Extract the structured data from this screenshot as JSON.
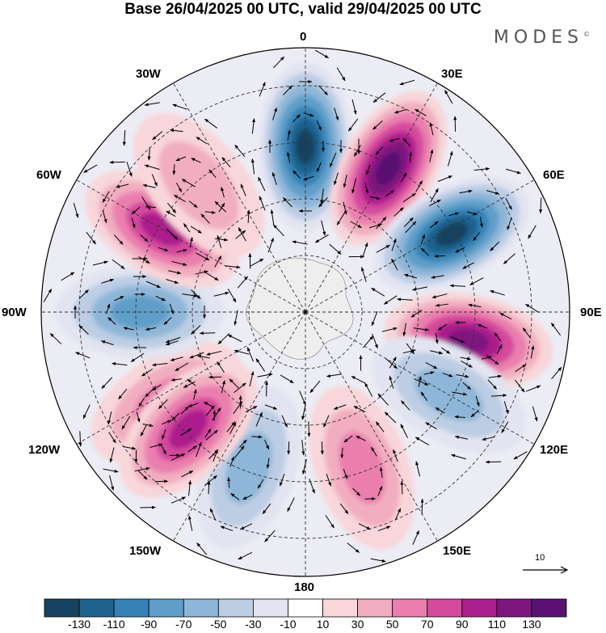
{
  "title": "Base 26/04/2025 00 UTC, valid 29/04/2025 00 UTC",
  "brand": {
    "name": "MODES",
    "mark": "©"
  },
  "map": {
    "projection": "polar stereographic (south pole)",
    "longitude_labels": [
      {
        "key": "lon_0",
        "text": "0"
      },
      {
        "key": "lon_30E",
        "text": "30E"
      },
      {
        "key": "lon_60E",
        "text": "60E"
      },
      {
        "key": "lon_90E",
        "text": "90E"
      },
      {
        "key": "lon_120E",
        "text": "120E"
      },
      {
        "key": "lon_150E",
        "text": "150E"
      },
      {
        "key": "lon_180",
        "text": "180"
      },
      {
        "key": "lon_150W",
        "text": "150W"
      },
      {
        "key": "lon_120W",
        "text": "120W"
      },
      {
        "key": "lon_90W",
        "text": "90W"
      },
      {
        "key": "lon_60W",
        "text": "60W"
      },
      {
        "key": "lon_30W",
        "text": "30W"
      }
    ],
    "anomaly_centers": [
      {
        "lon_deg": 0,
        "sign": "negative",
        "peak": -130
      },
      {
        "lon_deg": 30,
        "sign": "positive",
        "peak": 130
      },
      {
        "lon_deg": 62,
        "sign": "negative",
        "peak": -130
      },
      {
        "lon_deg": 100,
        "sign": "positive",
        "peak": 110
      },
      {
        "lon_deg": 120,
        "sign": "negative",
        "peak": -50
      },
      {
        "lon_deg": 160,
        "sign": "positive",
        "peak": 50
      },
      {
        "lon_deg": 200,
        "sign": "negative",
        "peak": -50
      },
      {
        "lon_deg": 237,
        "sign": "positive",
        "peak": 50
      },
      {
        "lon_deg": 225,
        "sign": "positive",
        "peak": 90
      },
      {
        "lon_deg": 270,
        "sign": "negative",
        "peak": -70
      },
      {
        "lon_deg": 300,
        "sign": "positive",
        "peak": 90
      },
      {
        "lon_deg": 320,
        "sign": "positive",
        "peak": 30
      }
    ]
  },
  "reference_vector": {
    "label": "10"
  },
  "colorbar": {
    "ticks": [
      "-130",
      "-110",
      "-90",
      "-70",
      "-50",
      "-30",
      "-10",
      "10",
      "30",
      "50",
      "70",
      "90",
      "110",
      "130"
    ],
    "colors": [
      "#16435f",
      "#1f628f",
      "#3682b6",
      "#5e9ec9",
      "#8eb6d8",
      "#bccde4",
      "#e2e4f1",
      "#ffffff",
      "#f8d6d9",
      "#f2aec1",
      "#ea7fae",
      "#d44a9c",
      "#ac1f8c",
      "#7d177f",
      "#5a1173"
    ]
  }
}
